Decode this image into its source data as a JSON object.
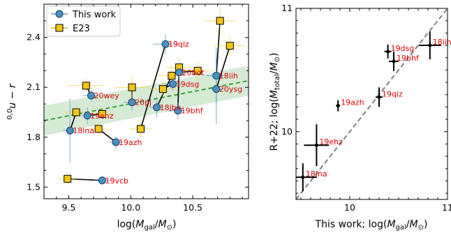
{
  "chart_data": [
    {
      "type": "scatter",
      "xlabel": "log(M_gal/M_⊙)",
      "ylabel": "0,0u − r",
      "xlim": [
        9.3,
        10.95
      ],
      "ylim": [
        1.43,
        2.6
      ],
      "xticks": [
        "9.5",
        "10.0",
        "10.5"
      ],
      "yticks": [
        "1.5",
        "1.8",
        "2.1",
        "2.4"
      ],
      "legend": {
        "position": "top-left",
        "entries": [
          "This work",
          "E23"
        ]
      },
      "fit_line": {
        "x": [
          9.3,
          10.95
        ],
        "y": [
          1.9,
          2.14
        ]
      },
      "fit_band_halfwidth": 0.09,
      "colors": {
        "this_work": "#4a8fc2",
        "e23": "#f2c518",
        "fit": "#3aa03a",
        "band": "#cfe8cf",
        "annotation": "#e00000"
      },
      "series": [
        {
          "name": "This work",
          "points": [
            {
              "label": "19qiz",
              "x": 10.28,
              "y": 2.36
            },
            {
              "label": "20bot",
              "x": 10.39,
              "y": 2.19
            },
            {
              "label": "19dsg",
              "x": 10.34,
              "y": 2.12
            },
            {
              "label": "18iih",
              "x": 10.69,
              "y": 2.17
            },
            {
              "label": "20ysg",
              "x": 10.69,
              "y": 2.09
            },
            {
              "label": "20wey",
              "x": 9.68,
              "y": 2.05
            },
            {
              "label": "20pj",
              "x": 10.01,
              "y": 2.01
            },
            {
              "label": "18jbx",
              "x": 10.21,
              "y": 1.98
            },
            {
              "label": "19bhf",
              "x": 10.38,
              "y": 1.96
            },
            {
              "label": "19ehz",
              "x": 9.65,
              "y": 1.93
            },
            {
              "label": "18lna",
              "x": 9.51,
              "y": 1.84
            },
            {
              "label": "19azh",
              "x": 9.88,
              "y": 1.77
            },
            {
              "label": "19vcb",
              "x": 9.77,
              "y": 1.54
            }
          ]
        },
        {
          "name": "E23",
          "points": [
            {
              "label": "19qiz",
              "x": 10.08,
              "y": 1.85
            },
            {
              "label": "20bot",
              "x": 10.54,
              "y": 2.2
            },
            {
              "label": "19dsg",
              "x": 10.26,
              "y": 2.09
            },
            {
              "label": "18iih",
              "x": 10.72,
              "y": 2.5
            },
            {
              "label": "20ysg",
              "x": 10.8,
              "y": 2.35
            },
            {
              "label": "20wey",
              "x": 9.64,
              "y": 2.11
            },
            {
              "label": "20pj",
              "x": 10.01,
              "y": 2.1
            },
            {
              "label": "18jbx",
              "x": 10.33,
              "y": 2.17
            },
            {
              "label": "19bhf",
              "x": 10.39,
              "y": 2.22
            },
            {
              "label": "19ehz",
              "x": 9.77,
              "y": 1.94
            },
            {
              "label": "18lna",
              "x": 9.56,
              "y": 1.95
            },
            {
              "label": "19azh",
              "x": 9.74,
              "y": 1.85
            },
            {
              "label": "19vcb",
              "x": 9.49,
              "y": 1.55
            }
          ]
        }
      ]
    },
    {
      "type": "scatter",
      "xlabel": "This work; log(M_gal/M_⊙)",
      "ylabel": "R+22; log(M_total/M_⊙)",
      "xlim": [
        9.45,
        11.0
      ],
      "ylim": [
        9.45,
        11.0
      ],
      "xticks": [
        "10",
        "11"
      ],
      "yticks": [
        "10",
        "11"
      ],
      "one_to_one_line": true,
      "points": [
        {
          "label": "18lna",
          "x": 9.52,
          "y": 9.63
        },
        {
          "label": "19ehz",
          "x": 9.66,
          "y": 9.89
        },
        {
          "label": "19azh",
          "x": 9.88,
          "y": 10.21
        },
        {
          "label": "19qiz",
          "x": 10.3,
          "y": 10.28
        },
        {
          "label": "19dsg",
          "x": 10.39,
          "y": 10.65
        },
        {
          "label": "19bhf",
          "x": 10.45,
          "y": 10.57
        },
        {
          "label": "18iih",
          "x": 10.82,
          "y": 10.7
        }
      ]
    }
  ]
}
